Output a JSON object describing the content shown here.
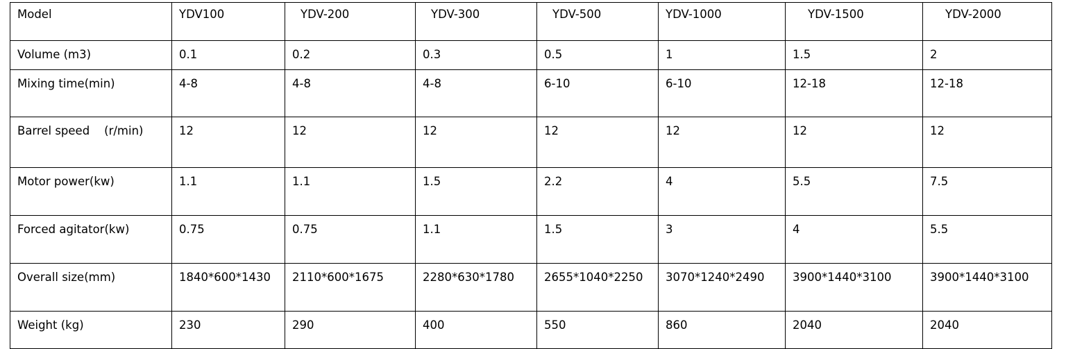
{
  "table": {
    "header": [
      "Model",
      "YDV100",
      "YDV-200",
      "YDV-300",
      "YDV-500",
      "YDV-1000",
      "YDV-1500",
      "YDV-2000"
    ],
    "rows": [
      [
        "Volume (m3)",
        "0.1",
        "0.2",
        "0.3",
        "0.5",
        "1",
        "1.5",
        "2"
      ],
      [
        "Mixing time(min)",
        "4-8",
        "4-8",
        "4-8",
        "6-10",
        "6-10",
        "12-18",
        "12-18"
      ],
      [
        "Barrel speed    (r/min)",
        "12",
        "12",
        "12",
        "12",
        "12",
        "12",
        "12"
      ],
      [
        "Motor power(kw)",
        "1.1",
        "1.1",
        "1.5",
        "2.2",
        "4",
        "5.5",
        "7.5"
      ],
      [
        "Forced agitator(kw)",
        "0.75",
        "0.75",
        "1.1",
        "1.5",
        "3",
        "4",
        "5.5"
      ],
      [
        "Overall size(mm)",
        "1840*600*1430",
        "2110*600*1675",
        "2280*630*1780",
        "2655*1040*2250",
        "3070*1240*2490",
        "3900*1440*3100",
        "3900*1440*3100"
      ],
      [
        "Weight (kg)",
        "230",
        "290",
        "400",
        "550",
        "860",
        "2040",
        "2040"
      ]
    ]
  }
}
